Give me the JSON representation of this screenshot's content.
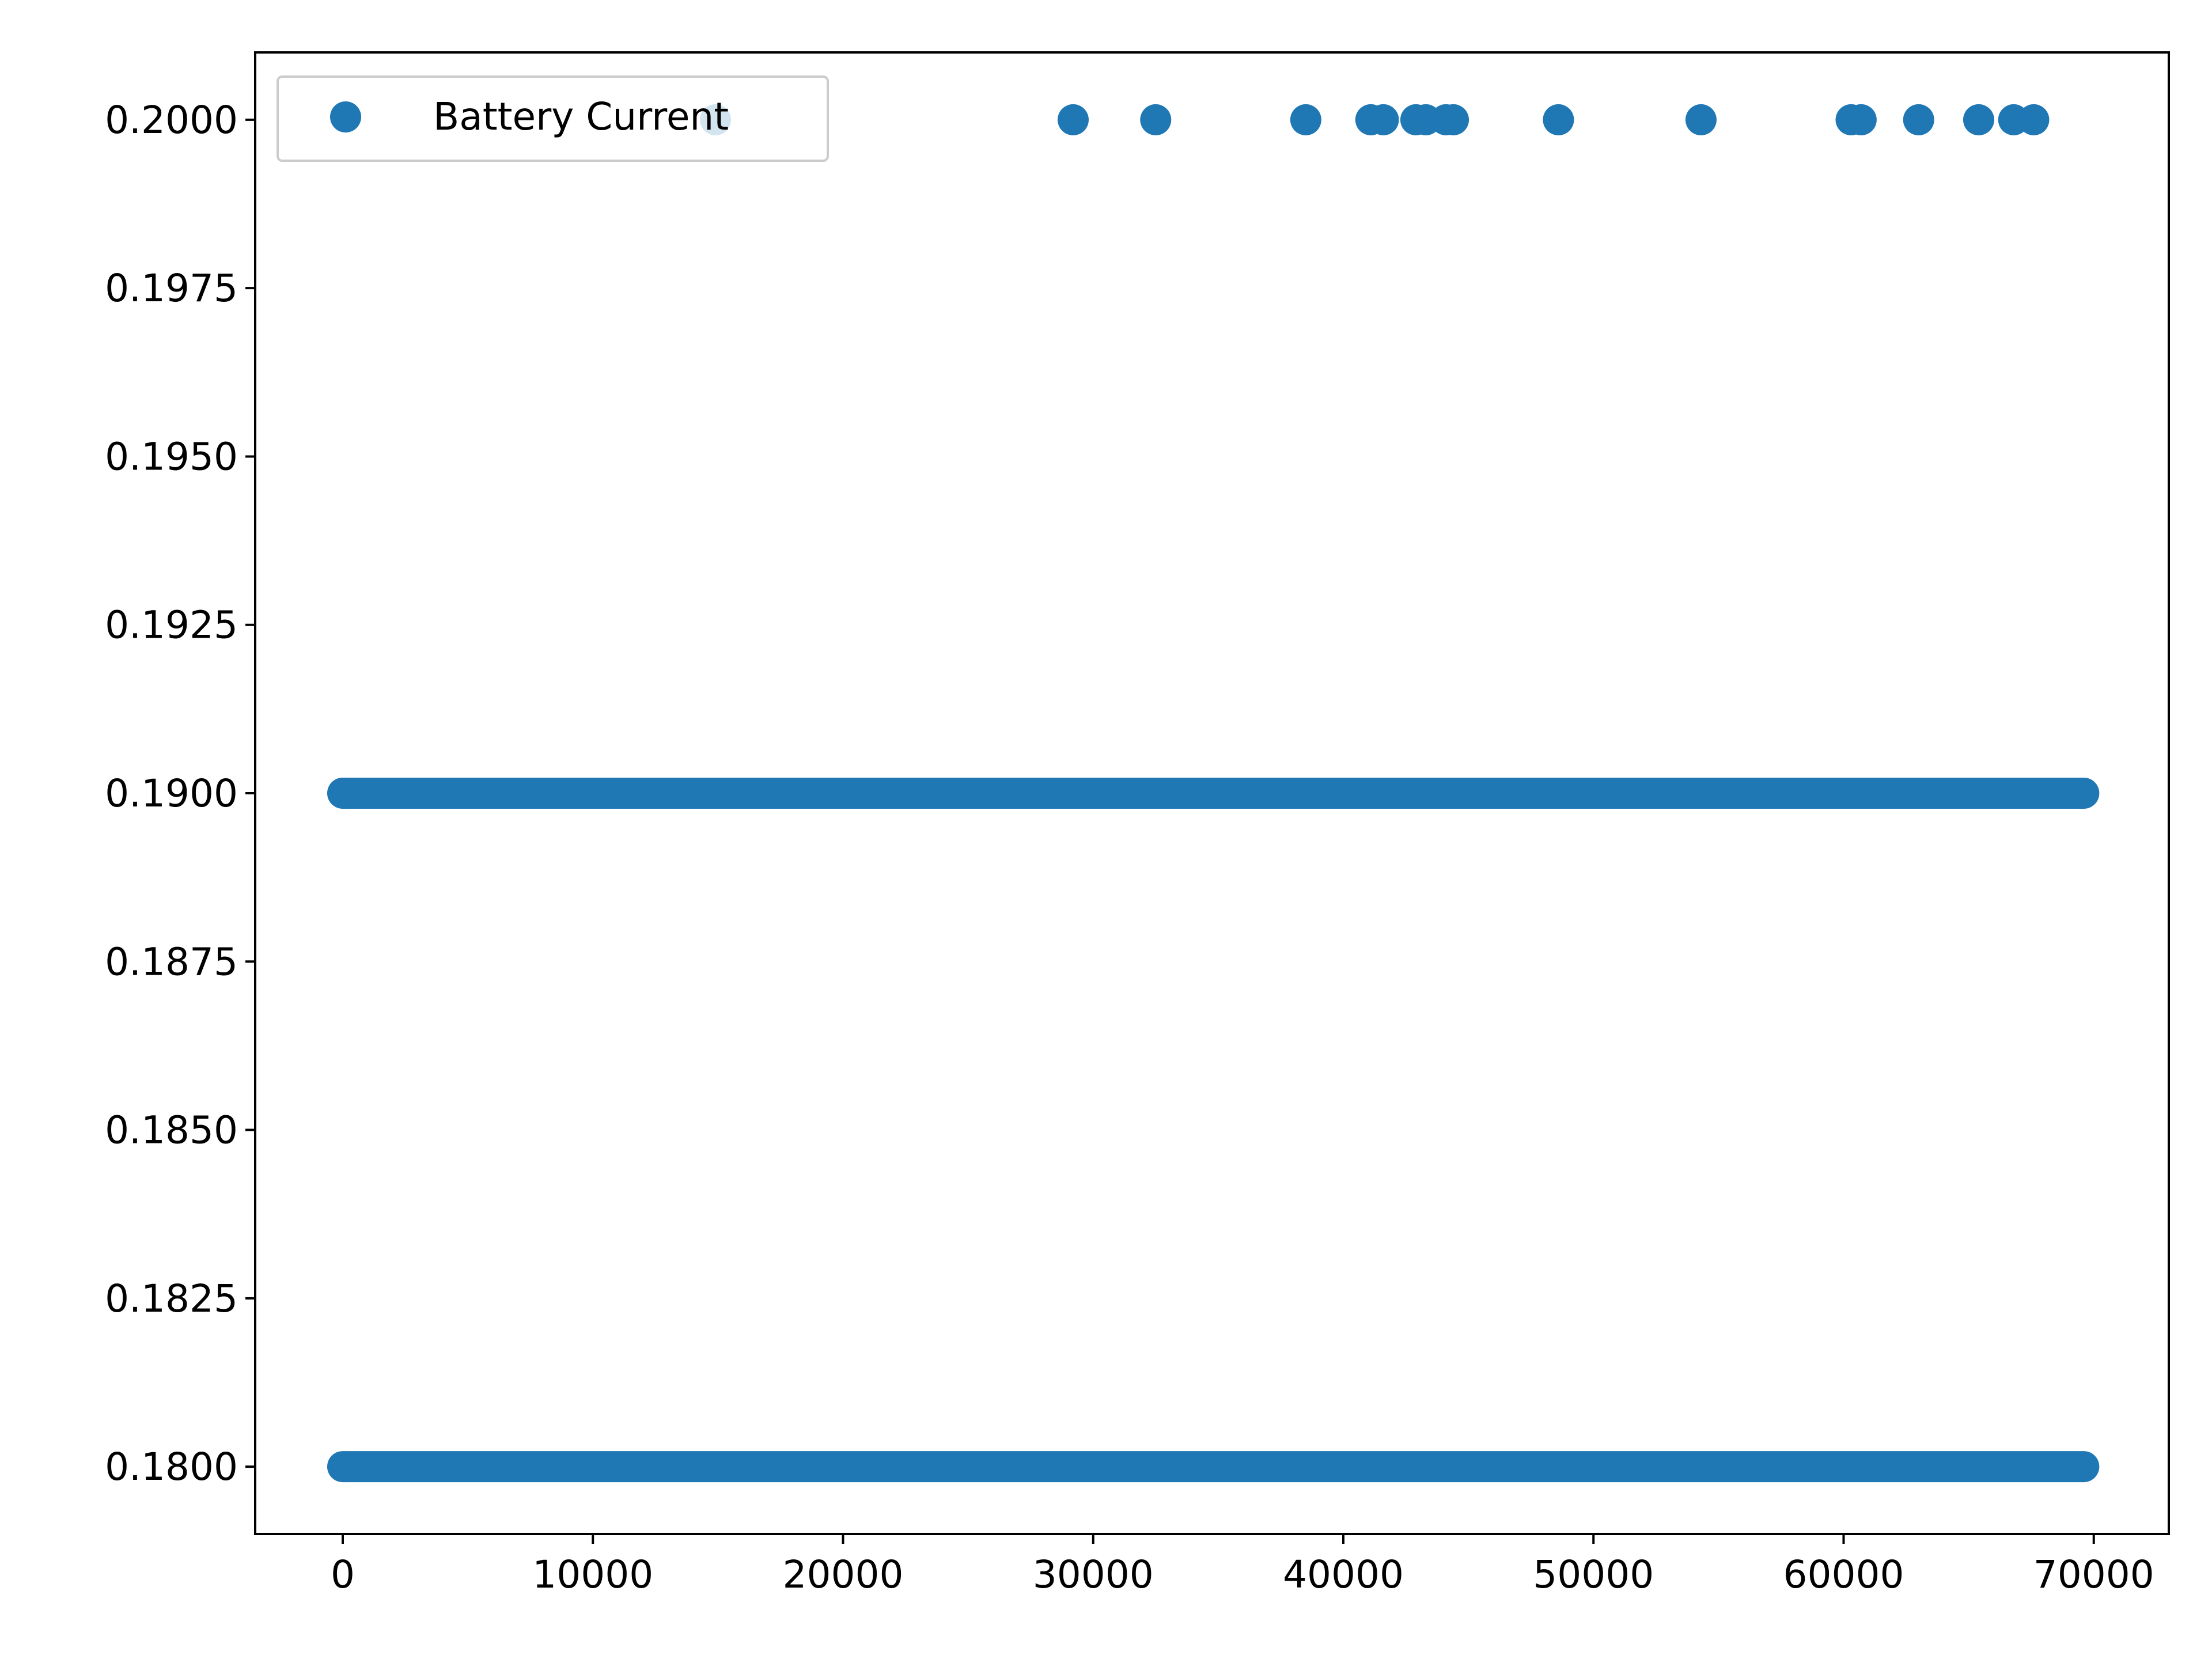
{
  "chart_data": {
    "type": "scatter",
    "title": "",
    "xlabel": "",
    "ylabel": "",
    "xlim": [
      -3500,
      73000
    ],
    "ylim": [
      0.179,
      0.201
    ],
    "x_ticks": [
      0,
      10000,
      20000,
      30000,
      40000,
      50000,
      60000,
      70000
    ],
    "x_tick_labels": [
      "0",
      "10000",
      "20000",
      "30000",
      "40000",
      "50000",
      "60000",
      "70000"
    ],
    "y_ticks": [
      0.18,
      0.1825,
      0.185,
      0.1875,
      0.19,
      0.1925,
      0.195,
      0.1975,
      0.2
    ],
    "y_tick_labels": [
      "0.1800",
      "0.1825",
      "0.1850",
      "0.1875",
      "0.1900",
      "0.1925",
      "0.1950",
      "0.1975",
      "0.2000"
    ],
    "grid": false,
    "legend_position": "upper-left",
    "marker_color": "#1f77b4",
    "series": [
      {
        "name": "Battery Current",
        "dense_runs": [
          {
            "y": 0.18,
            "x_start": 0,
            "x_end": 69600
          },
          {
            "y": 0.19,
            "x_start": 0,
            "x_end": 69600
          }
        ],
        "points": [
          {
            "x": 14900,
            "y": 0.2
          },
          {
            "x": 29200,
            "y": 0.2
          },
          {
            "x": 32500,
            "y": 0.2
          },
          {
            "x": 38500,
            "y": 0.2
          },
          {
            "x": 41100,
            "y": 0.2
          },
          {
            "x": 41600,
            "y": 0.2
          },
          {
            "x": 42900,
            "y": 0.2
          },
          {
            "x": 43300,
            "y": 0.2
          },
          {
            "x": 44100,
            "y": 0.2
          },
          {
            "x": 44400,
            "y": 0.2
          },
          {
            "x": 48600,
            "y": 0.2
          },
          {
            "x": 54300,
            "y": 0.2
          },
          {
            "x": 60300,
            "y": 0.2
          },
          {
            "x": 60700,
            "y": 0.2
          },
          {
            "x": 63000,
            "y": 0.2
          },
          {
            "x": 65400,
            "y": 0.2
          },
          {
            "x": 66800,
            "y": 0.2
          },
          {
            "x": 67600,
            "y": 0.2
          }
        ]
      }
    ]
  }
}
